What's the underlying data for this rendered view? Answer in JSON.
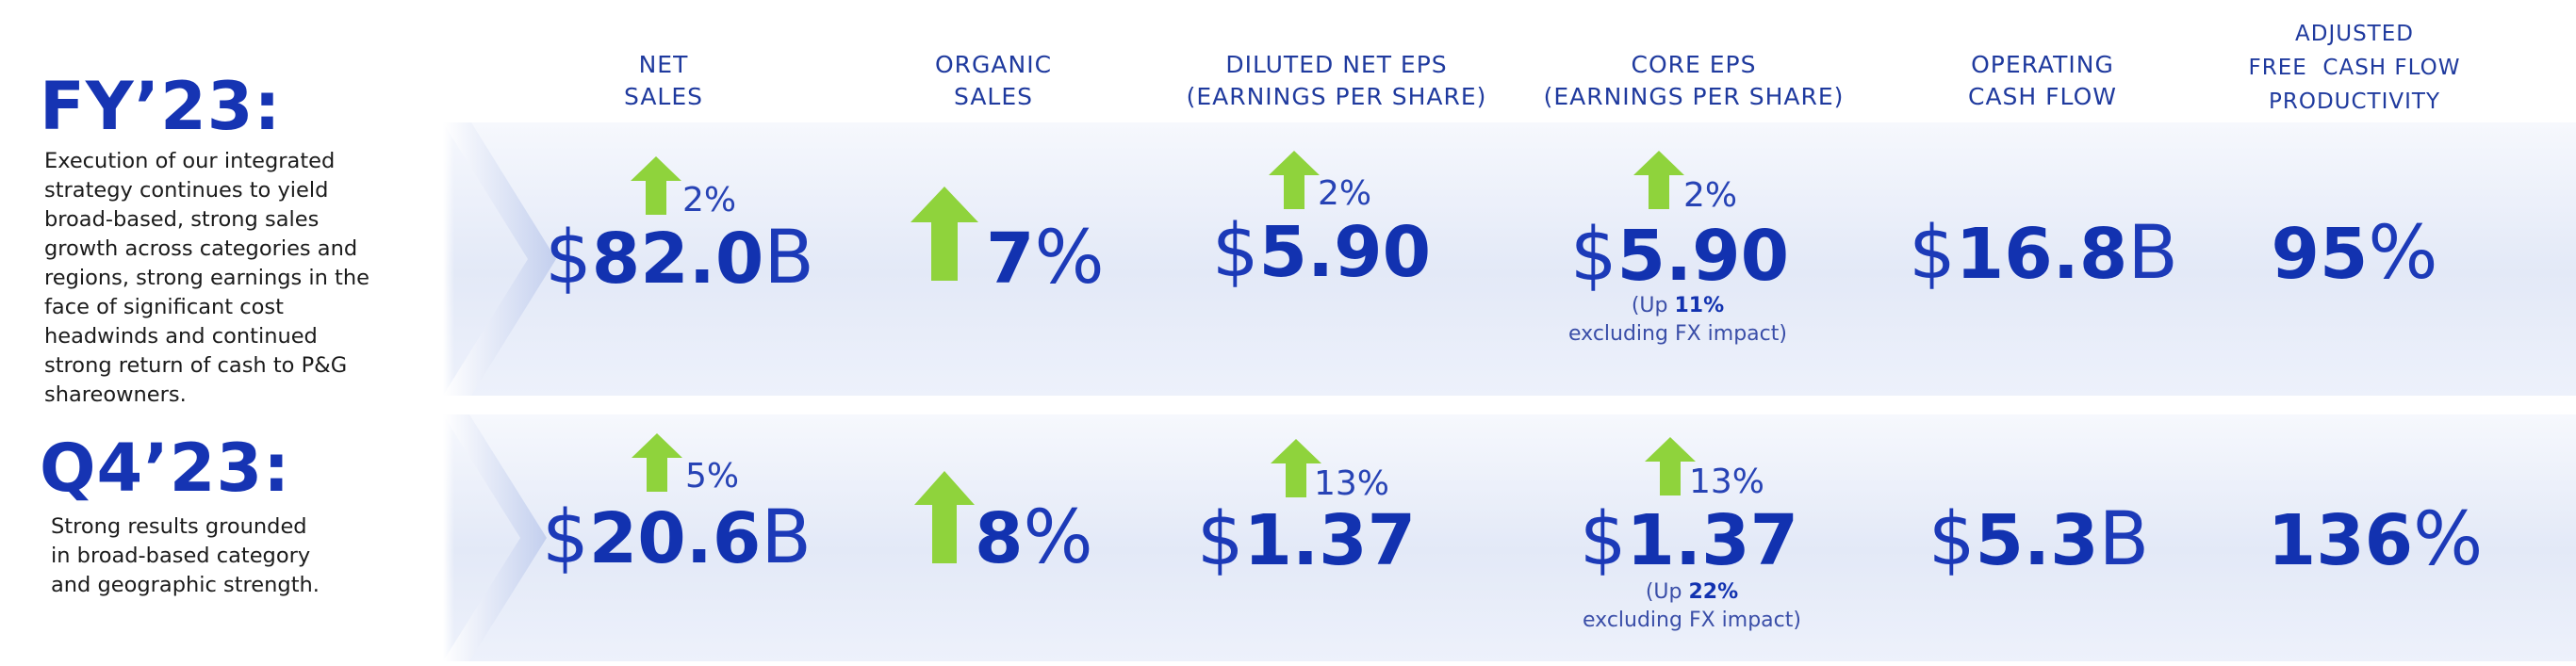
{
  "colors": {
    "title_blue": "#1634b3",
    "metric_blue": "#1232b0",
    "arrow_green": "#8fd33c",
    "band_light": "#e3e9f7"
  },
  "headers": {
    "net_sales": [
      "NET",
      "SALES"
    ],
    "organic_sales": [
      "ORGANIC",
      "SALES"
    ],
    "diluted_eps": [
      "DILUTED NET EPS",
      "(EARNINGS PER SHARE)"
    ],
    "core_eps": [
      "CORE EPS",
      "(EARNINGS PER SHARE)"
    ],
    "operating_cash_flow": [
      "OPERATING",
      "CASH FLOW"
    ],
    "adjusted_fcf": [
      "ADJUSTED",
      "FREE  CASH FLOW",
      "PRODUCTIVITY"
    ]
  },
  "fy23": {
    "title": "FY’23:",
    "description": [
      "Execution of our integrated",
      "strategy continues to yield",
      "broad-based, strong sales",
      "growth across categories and",
      "regions, strong earnings in the",
      "face of significant cost",
      "headwinds and continued",
      "strong return of cash to P&G",
      "shareowners."
    ],
    "net_sales": {
      "symbol": "$",
      "value": "82.0",
      "unit": "B",
      "change": "2%",
      "icon": "up-arrow-icon"
    },
    "organic_sales": {
      "value": "7",
      "unit": "%",
      "icon": "up-arrow-icon"
    },
    "diluted_eps": {
      "symbol": "$",
      "value": "5.90",
      "change": "2%",
      "icon": "up-arrow-icon"
    },
    "core_eps": {
      "symbol": "$",
      "value": "5.90",
      "change": "2%",
      "icon": "up-arrow-icon",
      "note_prefix": "(Up ",
      "note_value": "11%",
      "note_suffix": "excluding FX impact)"
    },
    "operating_cash_flow": {
      "symbol": "$",
      "value": "16.8",
      "unit": "B"
    },
    "adjusted_fcf": {
      "value": "95",
      "unit": "%"
    }
  },
  "q423": {
    "title": "Q4’23:",
    "description": [
      "Strong results grounded",
      "in broad-based category",
      "and geographic strength."
    ],
    "net_sales": {
      "symbol": "$",
      "value": "20.6",
      "unit": "B",
      "change": "5%",
      "icon": "up-arrow-icon"
    },
    "organic_sales": {
      "value": "8",
      "unit": "%",
      "icon": "up-arrow-icon"
    },
    "diluted_eps": {
      "symbol": "$",
      "value": "1.37",
      "change": "13%",
      "icon": "up-arrow-icon"
    },
    "core_eps": {
      "symbol": "$",
      "value": "1.37",
      "change": "13%",
      "icon": "up-arrow-icon",
      "note_prefix": "(Up ",
      "note_value": "22%",
      "note_suffix": "excluding FX impact)"
    },
    "operating_cash_flow": {
      "symbol": "$",
      "value": "5.3",
      "unit": "B"
    },
    "adjusted_fcf": {
      "value": "136",
      "unit": "%"
    }
  }
}
